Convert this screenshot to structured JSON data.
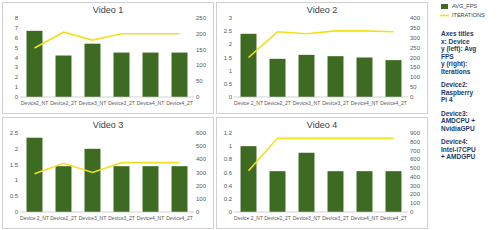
{
  "chart_data": [
    {
      "type": "bar",
      "title": "Video 1",
      "categories": [
        "Device2_NT",
        "Device2_2T",
        "Device3_NT",
        "Device3_2T",
        "Device4_NT",
        "Device4_2T"
      ],
      "series": [
        {
          "name": "AVG_FPS",
          "type": "bar",
          "color": "#3d6b21",
          "values": [
            6.7,
            4.2,
            5.4,
            4.5,
            4.5,
            4.5
          ]
        },
        {
          "name": "ITERATIONS",
          "type": "line",
          "axis": "y2",
          "color": "#f0e020",
          "values": [
            155,
            205,
            180,
            200,
            200,
            200
          ]
        }
      ],
      "ylim": [
        0,
        8
      ],
      "yticks": [
        0,
        1,
        2,
        3,
        4,
        5,
        6,
        7,
        8
      ],
      "y2lim": [
        0,
        250
      ],
      "y2ticks": [
        0,
        50,
        100,
        150,
        200,
        250
      ],
      "grid": false
    },
    {
      "type": "bar",
      "title": "Video 2",
      "categories": [
        "Device 2_NT",
        "Device2_2T",
        "Device3_NT",
        "Device3_2T",
        "Device4_NT",
        "Device4_2T"
      ],
      "series": [
        {
          "name": "AVG_FPS",
          "type": "bar",
          "color": "#3d6b21",
          "values": [
            2.4,
            1.45,
            1.6,
            1.55,
            1.5,
            1.4
          ]
        },
        {
          "name": "ITERATIONS",
          "type": "line",
          "axis": "y2",
          "color": "#f0e020",
          "values": [
            200,
            330,
            320,
            335,
            335,
            330
          ]
        }
      ],
      "ylim": [
        0,
        3
      ],
      "yticks": [
        0,
        0.5,
        1,
        1.5,
        2,
        2.5,
        3
      ],
      "y2lim": [
        0,
        400
      ],
      "y2ticks": [
        0,
        50,
        100,
        150,
        200,
        250,
        300,
        350,
        400
      ],
      "grid": false
    },
    {
      "type": "bar",
      "title": "Video 3",
      "categories": [
        "Device 2_NT",
        "Device2_2T",
        "Device3_NT",
        "Device3_2T",
        "Device4_NT",
        "Device4_2T"
      ],
      "series": [
        {
          "name": "AVG_FPS",
          "type": "bar",
          "color": "#3d6b21",
          "values": [
            2.35,
            1.45,
            2.0,
            1.45,
            1.45,
            1.45
          ]
        },
        {
          "name": "ITERATIONS",
          "type": "line",
          "axis": "y2",
          "color": "#f0e020",
          "values": [
            290,
            370,
            300,
            375,
            375,
            375
          ]
        }
      ],
      "ylim": [
        0,
        2.5
      ],
      "yticks": [
        0,
        0.5,
        1,
        1.5,
        2,
        2.5
      ],
      "y2lim": [
        0,
        600
      ],
      "y2ticks": [
        0,
        100,
        200,
        300,
        400,
        500,
        600
      ],
      "grid": false
    },
    {
      "type": "bar",
      "title": "Video 4",
      "categories": [
        "Device 2_NT",
        "Device2_2T",
        "Device3_NT",
        "Device3_2T",
        "Device4_NT",
        "Device4_2T"
      ],
      "series": [
        {
          "name": "AVG_FPS",
          "type": "bar",
          "color": "#3d6b21",
          "values": [
            1.0,
            0.62,
            0.9,
            0.62,
            0.62,
            0.62
          ]
        },
        {
          "name": "ITERATIONS",
          "type": "line",
          "axis": "y2",
          "color": "#f0e020",
          "values": [
            470,
            840,
            840,
            840,
            840,
            840
          ]
        }
      ],
      "ylim": [
        0,
        1.2
      ],
      "yticks": [
        0,
        0.2,
        0.4,
        0.6,
        0.8,
        1,
        1.2
      ],
      "y2lim": [
        0,
        900
      ],
      "y2ticks": [
        0,
        100,
        200,
        300,
        400,
        500,
        600,
        700,
        800,
        900
      ],
      "grid": false
    }
  ],
  "side_panel": {
    "axes_titles": {
      "heading": "Axes titles",
      "lines": [
        "x: Device",
        "y (left): Avg",
        "FPS",
        "y (right):",
        "Iterations"
      ]
    },
    "devices": [
      {
        "name": "Device2:",
        "lines": [
          "Raspberry",
          "Pi 4"
        ]
      },
      {
        "name": "Device3:",
        "lines": [
          "AMDCPU +",
          "NvidiaGPU"
        ]
      },
      {
        "name": "Device4:",
        "lines": [
          "Intel-i7CPU",
          "+ AMDGPU"
        ]
      }
    ]
  }
}
